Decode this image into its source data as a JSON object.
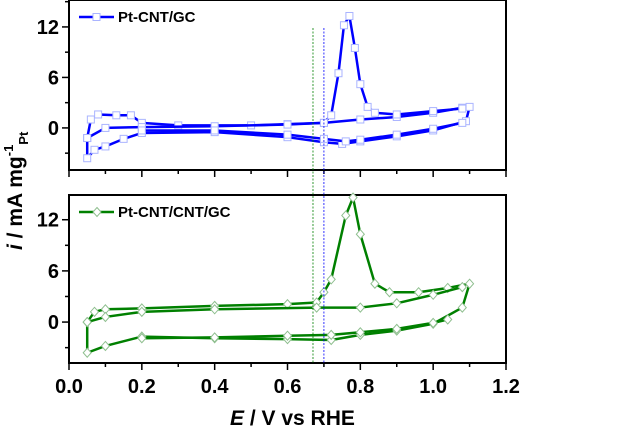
{
  "chart_data": [
    {
      "type": "line",
      "panel": "top",
      "legend": "Pt-CNT/GC",
      "color": "#0000ff",
      "marker": "square",
      "xlim": [
        0,
        1.2
      ],
      "ylim": [
        -5,
        15.2
      ],
      "yticks": [
        "12",
        "6",
        "0"
      ],
      "ytick_values": [
        12,
        6,
        0
      ],
      "marker_line": 0.7,
      "segments": [
        [
          [
            0.05,
            -1.2
          ],
          [
            0.06,
            1.0
          ],
          [
            0.08,
            1.6
          ],
          [
            0.13,
            1.5
          ],
          [
            0.17,
            1.5
          ],
          [
            0.2,
            0.6
          ],
          [
            0.3,
            0.3
          ],
          [
            0.5,
            0.3
          ],
          [
            0.6,
            0.45
          ],
          [
            0.7,
            0.6
          ],
          [
            0.8,
            1.0
          ],
          [
            0.9,
            1.3
          ],
          [
            1.0,
            1.8
          ],
          [
            1.08,
            2.4
          ],
          [
            1.1,
            2.5
          ],
          [
            1.09,
            0.8
          ],
          [
            1.0,
            -0.3
          ],
          [
            0.9,
            -1.0
          ],
          [
            0.8,
            -1.6
          ],
          [
            0.75,
            -1.9
          ],
          [
            0.7,
            -1.7
          ],
          [
            0.6,
            -1.1
          ],
          [
            0.4,
            -0.5
          ],
          [
            0.2,
            -0.6
          ],
          [
            0.15,
            -1.3
          ],
          [
            0.1,
            -2.2
          ],
          [
            0.07,
            -2.6
          ],
          [
            0.05,
            -3.6
          ],
          [
            0.05,
            -1.2
          ]
        ],
        [
          [
            0.05,
            -1.2
          ],
          [
            0.1,
            0.0
          ],
          [
            0.2,
            0.1
          ],
          [
            0.4,
            0.2
          ],
          [
            0.6,
            0.4
          ],
          [
            0.7,
            0.6
          ],
          [
            0.72,
            1.5
          ],
          [
            0.74,
            6.5
          ],
          [
            0.755,
            12.2
          ],
          [
            0.77,
            13.3
          ],
          [
            0.785,
            9.5
          ],
          [
            0.8,
            5.2
          ],
          [
            0.82,
            2.5
          ],
          [
            0.84,
            1.8
          ],
          [
            0.9,
            1.6
          ],
          [
            1.0,
            2.0
          ],
          [
            1.08,
            2.3
          ]
        ],
        [
          [
            0.2,
            -0.3
          ],
          [
            0.4,
            -0.3
          ],
          [
            0.6,
            -0.8
          ],
          [
            0.7,
            -1.3
          ],
          [
            0.76,
            -1.6
          ],
          [
            0.8,
            -1.4
          ],
          [
            0.9,
            -0.8
          ],
          [
            1.0,
            -0.1
          ],
          [
            1.08,
            0.6
          ]
        ]
      ]
    },
    {
      "type": "line",
      "panel": "bottom",
      "legend": "Pt-CNT/CNT/GC",
      "color": "#008000",
      "marker": "diamond",
      "xlim": [
        0,
        1.2
      ],
      "ylim": [
        -4.8,
        14.9
      ],
      "yticks": [
        "12",
        "6",
        "0"
      ],
      "ytick_values": [
        12,
        6,
        0
      ],
      "marker_line": 0.67,
      "xticks": [
        "0.0",
        "0.2",
        "0.4",
        "0.6",
        "0.8",
        "1.0",
        "1.2"
      ],
      "xtick_values": [
        0,
        0.2,
        0.4,
        0.6,
        0.8,
        1.0,
        1.2
      ],
      "segments": [
        [
          [
            0.05,
            0.0
          ],
          [
            0.07,
            1.2
          ],
          [
            0.1,
            1.5
          ],
          [
            0.2,
            1.6
          ],
          [
            0.4,
            1.9
          ],
          [
            0.6,
            2.1
          ],
          [
            0.68,
            2.3
          ],
          [
            0.7,
            3.5
          ],
          [
            0.72,
            5.0
          ],
          [
            0.76,
            12.5
          ],
          [
            0.78,
            14.6
          ],
          [
            0.8,
            10.3
          ],
          [
            0.84,
            4.5
          ],
          [
            0.88,
            3.5
          ],
          [
            0.96,
            3.5
          ],
          [
            1.04,
            4.0
          ],
          [
            1.1,
            4.5
          ],
          [
            1.08,
            1.7
          ],
          [
            1.0,
            -0.2
          ],
          [
            0.9,
            -1.0
          ],
          [
            0.8,
            -1.5
          ],
          [
            0.72,
            -2.1
          ],
          [
            0.6,
            -2.0
          ],
          [
            0.4,
            -1.9
          ],
          [
            0.2,
            -1.7
          ],
          [
            0.1,
            -2.8
          ],
          [
            0.05,
            -3.6
          ],
          [
            0.05,
            0.0
          ]
        ],
        [
          [
            0.05,
            0.0
          ],
          [
            0.1,
            0.6
          ],
          [
            0.2,
            1.2
          ],
          [
            0.4,
            1.5
          ],
          [
            0.68,
            1.7
          ],
          [
            0.8,
            1.7
          ],
          [
            0.9,
            2.2
          ],
          [
            1.0,
            3.2
          ],
          [
            1.08,
            4.1
          ]
        ],
        [
          [
            0.2,
            -1.9
          ],
          [
            0.4,
            -1.8
          ],
          [
            0.6,
            -1.6
          ],
          [
            0.72,
            -1.5
          ],
          [
            0.8,
            -1.2
          ],
          [
            0.9,
            -0.8
          ],
          [
            1.0,
            -0.1
          ],
          [
            1.04,
            0.3
          ]
        ]
      ]
    }
  ],
  "axes": {
    "xlabel_italic": "E",
    "xlabel_rest": " / V vs  RHE",
    "ylabel_italic": "i",
    "ylabel_rest": " / mA mg",
    "ylabel_sup": "-1",
    "ylabel_sub": "Pt"
  }
}
